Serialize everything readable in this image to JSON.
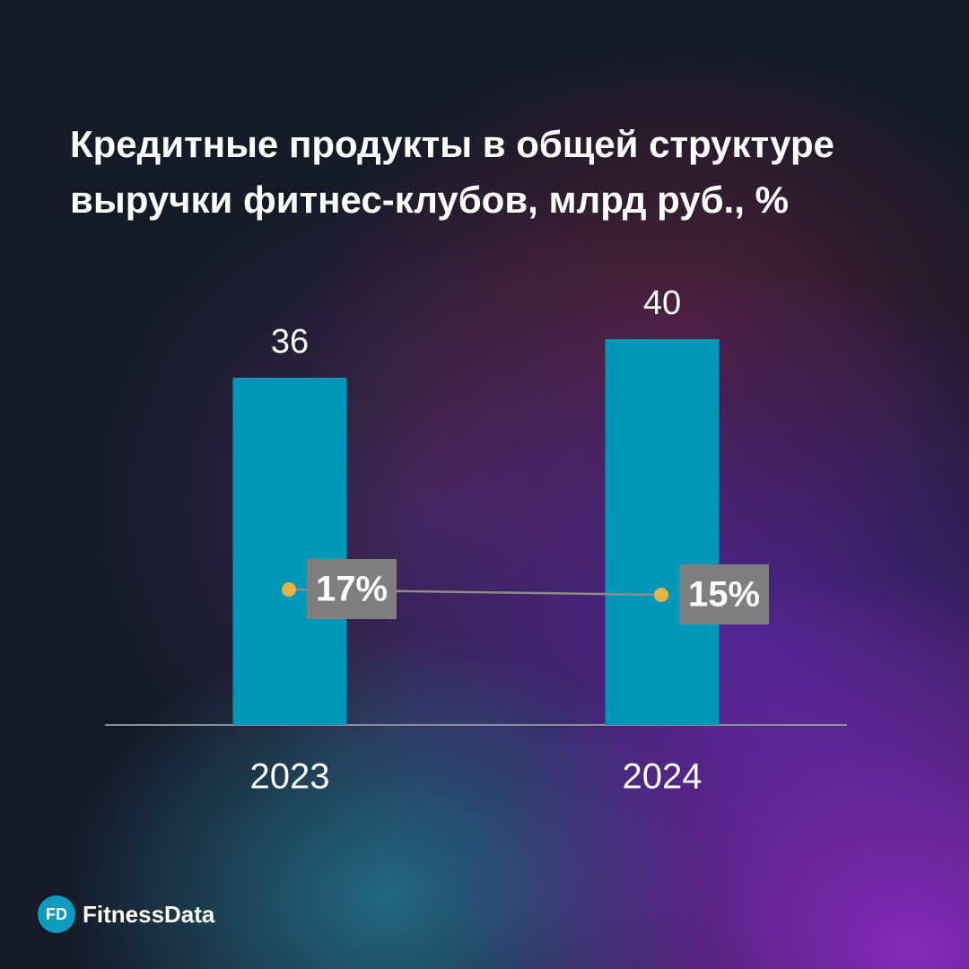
{
  "chart_data": {
    "type": "bar",
    "title": "Кредитные продукты в общей структуре выручки фитнес-клубов, млрд руб., %",
    "categories": [
      "2023",
      "2024"
    ],
    "series": [
      {
        "type": "bar",
        "color": "#0097b9",
        "values": [
          36,
          40
        ]
      },
      {
        "type": "line",
        "axis": "y2",
        "color": "#e6b445",
        "line_color": "#8c8c8c",
        "values": [
          17,
          15
        ],
        "value_labels": [
          "17%",
          "15%"
        ]
      }
    ]
  },
  "brand": {
    "mark": "FD",
    "name": "FitnessData"
  }
}
